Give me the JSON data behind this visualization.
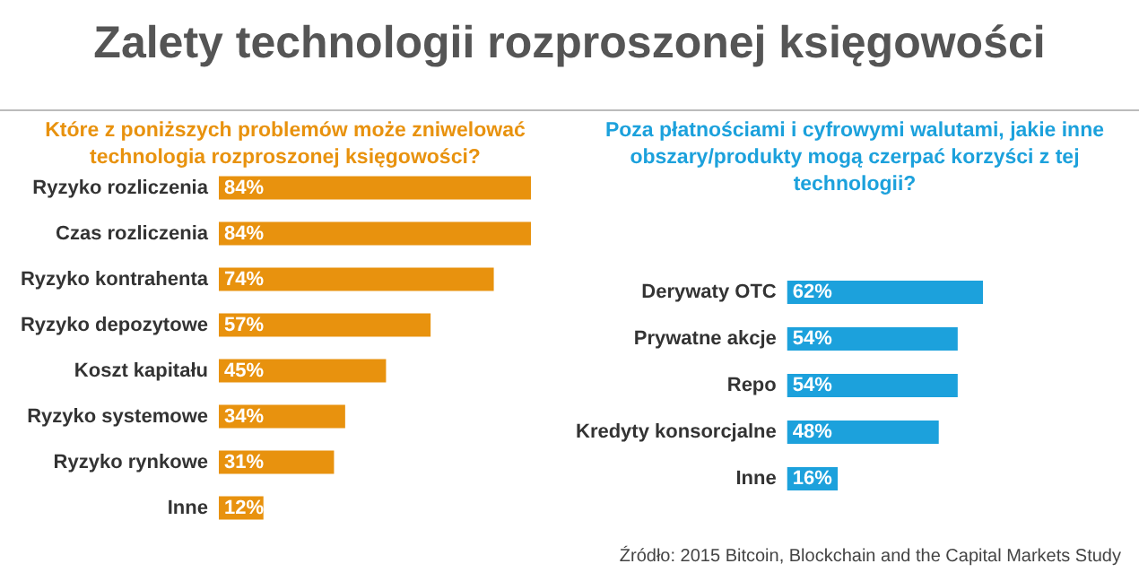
{
  "chart_data": [
    {
      "type": "bar",
      "orientation": "horizontal",
      "title": "Zalety technologii rozproszonej księgowości",
      "subtitle": "Które z poniższych problemów może zniwelować technologia rozproszonej księgowości?",
      "categories": [
        "Ryzyko rozliczenia",
        "Czas rozliczenia",
        "Ryzyko kontrahenta",
        "Ryzyko depozytowe",
        "Koszt kapitału",
        "Ryzyko systemowe",
        "Ryzyko rynkowe",
        "Inne"
      ],
      "values": [
        84,
        84,
        74,
        57,
        45,
        34,
        31,
        12
      ],
      "value_labels": [
        "84%",
        "84%",
        "74%",
        "57%",
        "45%",
        "34%",
        "31%",
        "12%"
      ],
      "color": "#e8920e"
    },
    {
      "type": "bar",
      "orientation": "horizontal",
      "title": "Poza płatnościami i cyfrowymi walutami, jakie inne obszary/produkty mogą czerpać korzyści z tej technologii?",
      "categories": [
        "Derywaty OTC",
        "Prywatne akcje",
        "Repo",
        "Kredyty konsorcjalne",
        "Inne"
      ],
      "values": [
        62,
        54,
        54,
        48,
        16
      ],
      "value_labels": [
        "62%",
        "54%",
        "54%",
        "48%",
        "16%"
      ],
      "color": "#1ca1dc",
      "annotations": [
        "Źródło: 2015 Bitcoin, Blockchain and the Capital Markets Study"
      ]
    }
  ]
}
